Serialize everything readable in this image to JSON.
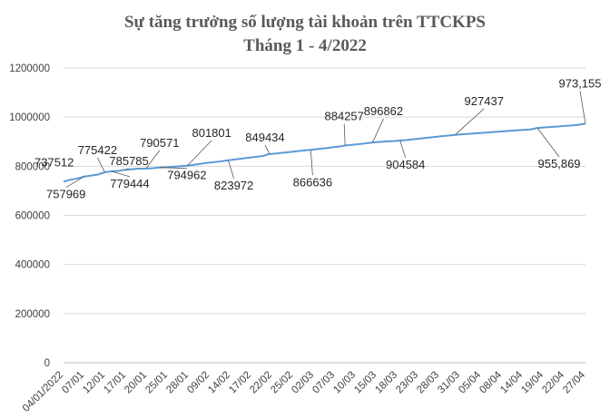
{
  "chart_data": {
    "type": "line",
    "title": [
      "Sự tăng trưởng số lượng tài khoản trên TTCKPS",
      "Tháng 1 - 4/2022"
    ],
    "xlabel": "",
    "ylabel": "",
    "ylim": [
      0,
      1200000
    ],
    "yticks": [
      0,
      200000,
      400000,
      600000,
      800000,
      1000000,
      1200000
    ],
    "ytick_labels": [
      "0",
      "200000",
      "400000",
      "600000",
      "800000",
      "1000000",
      "1200000"
    ],
    "grid": true,
    "legend": "none",
    "line_color": "#5b9bd5",
    "categories": [
      "04/01/2022",
      "07/01",
      "12/01",
      "17/01",
      "20/01",
      "25/01",
      "28/01",
      "09/02",
      "14/02",
      "17/02",
      "22/02",
      "25/02",
      "02/03",
      "07/03",
      "10/03",
      "15/03",
      "18/03",
      "23/03",
      "28/03",
      "31/03",
      "05/04",
      "08/04",
      "14/04",
      "19/04",
      "22/04",
      "27/04"
    ],
    "x": [
      "04/01/2022",
      "05/01",
      "06/01",
      "07/01",
      "10/01",
      "11/01",
      "12/01",
      "13/01",
      "14/01",
      "17/01",
      "18/01",
      "19/01",
      "20/01",
      "21/01",
      "24/01",
      "25/01",
      "26/01",
      "27/01",
      "28/01",
      "07/02",
      "08/02",
      "09/02",
      "10/02",
      "11/02",
      "14/02",
      "15/02",
      "16/02",
      "17/02",
      "18/02",
      "21/02",
      "22/02",
      "23/02",
      "24/02",
      "25/02",
      "28/02",
      "01/03",
      "02/03",
      "03/03",
      "04/03",
      "07/03",
      "08/03",
      "09/03",
      "10/03",
      "11/03",
      "14/03",
      "15/03",
      "16/03",
      "17/03",
      "18/03",
      "21/03",
      "22/03",
      "23/03",
      "24/03",
      "25/03",
      "28/03",
      "29/03",
      "30/03",
      "31/03",
      "01/04",
      "04/04",
      "05/04",
      "06/04",
      "07/04",
      "08/04",
      "12/04",
      "13/04",
      "14/04",
      "15/04",
      "18/04",
      "19/04",
      "20/04",
      "21/04",
      "22/04",
      "25/04",
      "26/04",
      "27/04",
      "28/04"
    ],
    "values": [
      737512,
      745000,
      750000,
      757969,
      762000,
      766000,
      775422,
      779444,
      781000,
      785785,
      788000,
      790000,
      790571,
      792000,
      794962,
      796000,
      798000,
      800000,
      801801,
      806000,
      810000,
      814000,
      817000,
      820000,
      823972,
      828000,
      831000,
      835000,
      838000,
      842000,
      849434,
      852000,
      855000,
      858000,
      861000,
      864000,
      866636,
      870000,
      873000,
      877000,
      880000,
      884257,
      887000,
      890000,
      893000,
      896862,
      899000,
      901000,
      902500,
      904584,
      907000,
      910000,
      913000,
      916000,
      919000,
      922000,
      925000,
      927437,
      930000,
      932000,
      934000,
      936000,
      938000,
      940000,
      942000,
      944000,
      946000,
      948000,
      950000,
      955869,
      958000,
      960000,
      962000,
      964000,
      966000,
      969000,
      973155
    ],
    "data_labels": [
      {
        "text": "737512",
        "index": 0
      },
      {
        "text": "757969",
        "index": 3
      },
      {
        "text": "775422",
        "index": 6
      },
      {
        "text": "779444",
        "index": 7
      },
      {
        "text": "785785",
        "index": 9
      },
      {
        "text": "790571",
        "index": 12
      },
      {
        "text": "794962",
        "index": 14
      },
      {
        "text": "801801",
        "index": 18
      },
      {
        "text": "823972",
        "index": 24
      },
      {
        "text": "849434",
        "index": 30
      },
      {
        "text": "866636",
        "index": 36
      },
      {
        "text": "884257",
        "index": 41
      },
      {
        "text": "896862",
        "index": 45
      },
      {
        "text": "904584",
        "index": 49
      },
      {
        "text": "927437",
        "index": 57
      },
      {
        "text": "955,869",
        "index": 69
      },
      {
        "text": "973,155",
        "index": 76
      }
    ]
  }
}
